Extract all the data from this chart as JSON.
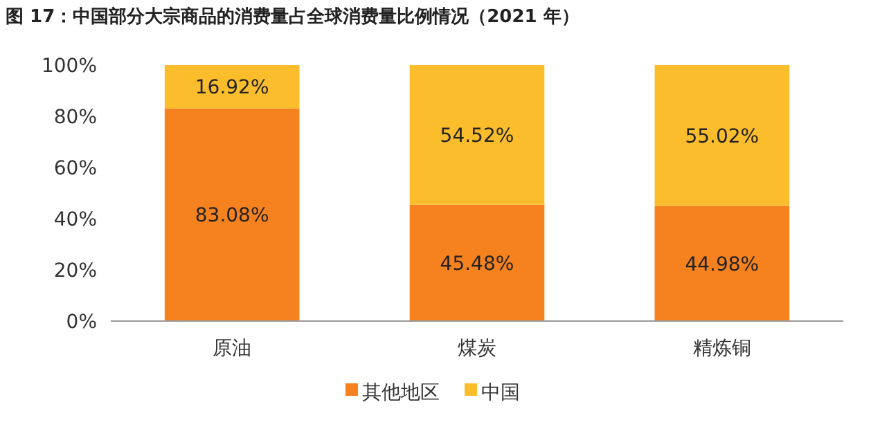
{
  "chart_data": {
    "type": "bar",
    "title": "图 17：中国部分大宗商品的消费量占全球消费量比例情况（2021 年）",
    "categories": [
      "原油",
      "煤炭",
      "精炼铜"
    ],
    "stacked": true,
    "legend": "bottom",
    "grid": false,
    "series": [
      {
        "name": "其他地区",
        "color": "#f5821f",
        "values": [
          83.08,
          45.48,
          44.98
        ],
        "value_labels": [
          "83.08%",
          "45.48%",
          "44.98%"
        ]
      },
      {
        "name": "中国",
        "color": "#fbbd2b",
        "values": [
          16.92,
          54.52,
          55.02
        ],
        "value_labels": [
          "16.92%",
          "54.52%",
          "55.02%"
        ]
      }
    ],
    "ylim": [
      0,
      100
    ],
    "yticks": [
      {
        "value": 0,
        "label": "0%"
      },
      {
        "value": 20,
        "label": "20%"
      },
      {
        "value": 40,
        "label": "40%"
      },
      {
        "value": 60,
        "label": "60%"
      },
      {
        "value": 80,
        "label": "80%"
      },
      {
        "value": 100,
        "label": "100%"
      }
    ]
  }
}
